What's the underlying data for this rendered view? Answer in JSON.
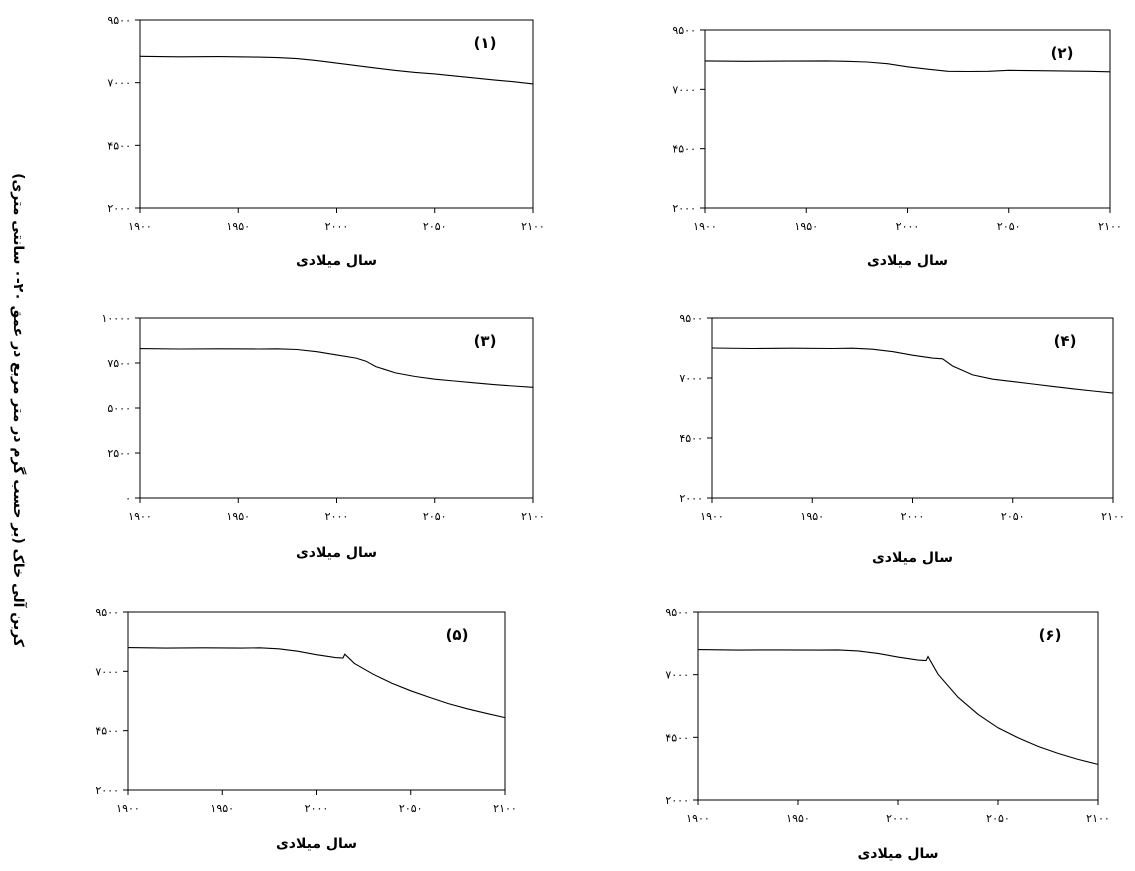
{
  "figure": {
    "y_title": "کربن آلی خاک (بر حسب گرم در متر مربع در عمق ۲۰-۰ سانتی متری)"
  },
  "chart_data": [
    {
      "type": "line",
      "panel_label": "(۱)",
      "xlabel": "سال میلادی",
      "xlim": [
        1900,
        2100
      ],
      "ylim": [
        2000,
        9500
      ],
      "xticks": [
        1900,
        1950,
        2000,
        2050,
        2100
      ],
      "yticks": [
        2000,
        4500,
        7000,
        9500
      ],
      "xtick_labels": [
        "۱۹۰۰",
        "۱۹۵۰",
        "۲۰۰۰",
        "۲۰۵۰",
        "۲۱۰۰"
      ],
      "ytick_labels": [
        "۲۰۰۰",
        "۴۵۰۰",
        "۷۰۰۰",
        "۹۵۰۰"
      ],
      "grid": false,
      "series": [
        {
          "x": [
            1900,
            1920,
            1940,
            1960,
            1970,
            1980,
            1990,
            2000,
            2010,
            2020,
            2030,
            2040,
            2050,
            2060,
            2070,
            2080,
            2090,
            2100
          ],
          "values": [
            8050,
            8030,
            8040,
            8020,
            8000,
            7960,
            7880,
            7780,
            7680,
            7580,
            7490,
            7410,
            7350,
            7270,
            7190,
            7110,
            7040,
            6950
          ]
        }
      ]
    },
    {
      "type": "line",
      "panel_label": "(۲)",
      "xlabel": "سال میلادی",
      "xlim": [
        1900,
        2100
      ],
      "ylim": [
        2000,
        9500
      ],
      "xticks": [
        1900,
        1950,
        2000,
        2050,
        2100
      ],
      "yticks": [
        2000,
        4500,
        7000,
        9500
      ],
      "xtick_labels": [
        "۱۹۰۰",
        "۱۹۵۰",
        "۲۰۰۰",
        "۲۰۵۰",
        "۲۱۰۰"
      ],
      "ytick_labels": [
        "۲۰۰۰",
        "۴۵۰۰",
        "۷۰۰۰",
        "۹۵۰۰"
      ],
      "grid": false,
      "series": [
        {
          "x": [
            1900,
            1920,
            1940,
            1960,
            1970,
            1980,
            1990,
            2000,
            2010,
            2020,
            2030,
            2040,
            2050,
            2060,
            2070,
            2080,
            2090,
            2100
          ],
          "values": [
            8200,
            8180,
            8190,
            8200,
            8180,
            8150,
            8080,
            7950,
            7850,
            7760,
            7750,
            7760,
            7800,
            7790,
            7780,
            7770,
            7760,
            7740
          ]
        }
      ]
    },
    {
      "type": "line",
      "panel_label": "(۳)",
      "xlabel": "سال میلادی",
      "xlim": [
        1900,
        2100
      ],
      "ylim": [
        0,
        10000
      ],
      "xticks": [
        1900,
        1950,
        2000,
        2050,
        2100
      ],
      "yticks": [
        0,
        2500,
        5000,
        7500,
        10000
      ],
      "xtick_labels": [
        "۱۹۰۰",
        "۱۹۵۰",
        "۲۰۰۰",
        "۲۰۵۰",
        "۲۱۰۰"
      ],
      "ytick_labels": [
        "۰",
        "۲۵۰۰",
        "۵۰۰۰",
        "۷۵۰۰",
        "۱۰۰۰۰"
      ],
      "grid": false,
      "series": [
        {
          "x": [
            1900,
            1920,
            1940,
            1960,
            1970,
            1980,
            1990,
            2000,
            2010,
            2015,
            2020,
            2030,
            2040,
            2050,
            2060,
            2070,
            2080,
            2090,
            2100
          ],
          "values": [
            8300,
            8280,
            8290,
            8280,
            8290,
            8250,
            8130,
            7950,
            7770,
            7600,
            7300,
            6950,
            6750,
            6600,
            6500,
            6400,
            6300,
            6220,
            6150
          ]
        }
      ]
    },
    {
      "type": "line",
      "panel_label": "(۴)",
      "xlabel": "سال میلادی",
      "xlim": [
        1900,
        2100
      ],
      "ylim": [
        2000,
        9500
      ],
      "xticks": [
        1900,
        1950,
        2000,
        2050,
        2100
      ],
      "yticks": [
        2000,
        4500,
        7000,
        9500
      ],
      "xtick_labels": [
        "۱۹۰۰",
        "۱۹۵۰",
        "۲۰۰۰",
        "۲۰۵۰",
        "۲۱۰۰"
      ],
      "ytick_labels": [
        "۲۰۰۰",
        "۴۵۰۰",
        "۷۰۰۰",
        "۹۵۰۰"
      ],
      "grid": false,
      "series": [
        {
          "x": [
            1900,
            1920,
            1940,
            1960,
            1970,
            1980,
            1990,
            2000,
            2010,
            2015,
            2020,
            2030,
            2040,
            2050,
            2060,
            2070,
            2080,
            2090,
            2100
          ],
          "values": [
            8250,
            8230,
            8240,
            8230,
            8240,
            8200,
            8100,
            7950,
            7830,
            7800,
            7500,
            7130,
            6950,
            6850,
            6750,
            6650,
            6550,
            6460,
            6370
          ]
        }
      ]
    },
    {
      "type": "line",
      "panel_label": "(۵)",
      "xlabel": "سال میلادی",
      "xlim": [
        1900,
        2100
      ],
      "ylim": [
        2000,
        9500
      ],
      "xticks": [
        1900,
        1950,
        2000,
        2050,
        2100
      ],
      "yticks": [
        2000,
        4500,
        7000,
        9500
      ],
      "xtick_labels": [
        "۱۹۰۰",
        "۱۹۵۰",
        "۲۰۰۰",
        "۲۰۵۰",
        "۲۱۰۰"
      ],
      "ytick_labels": [
        "۲۰۰۰",
        "۴۵۰۰",
        "۷۰۰۰",
        "۹۵۰۰"
      ],
      "grid": false,
      "series": [
        {
          "x": [
            1900,
            1920,
            1940,
            1960,
            1970,
            1980,
            1990,
            2000,
            2010,
            2014,
            2015,
            2020,
            2030,
            2040,
            2050,
            2060,
            2070,
            2080,
            2090,
            2100
          ],
          "values": [
            8000,
            7980,
            7990,
            7980,
            7990,
            7950,
            7850,
            7700,
            7580,
            7560,
            7720,
            7340,
            6880,
            6500,
            6180,
            5900,
            5640,
            5420,
            5230,
            5050
          ]
        }
      ]
    },
    {
      "type": "line",
      "panel_label": "(۶)",
      "xlabel": "سال میلادی",
      "xlim": [
        1900,
        2100
      ],
      "ylim": [
        2000,
        9500
      ],
      "xticks": [
        1900,
        1950,
        2000,
        2050,
        2100
      ],
      "yticks": [
        2000,
        4500,
        7000,
        9500
      ],
      "xtick_labels": [
        "۱۹۰۰",
        "۱۹۵۰",
        "۲۰۰۰",
        "۲۰۵۰",
        "۲۱۰۰"
      ],
      "ytick_labels": [
        "۲۰۰۰",
        "۴۵۰۰",
        "۷۰۰۰",
        "۹۵۰۰"
      ],
      "grid": false,
      "series": [
        {
          "x": [
            1900,
            1920,
            1940,
            1960,
            1970,
            1980,
            1990,
            2000,
            2010,
            2014,
            2015,
            2020,
            2030,
            2040,
            2050,
            2060,
            2070,
            2080,
            2090,
            2100
          ],
          "values": [
            8000,
            7980,
            7990,
            7980,
            7990,
            7950,
            7850,
            7700,
            7580,
            7560,
            7720,
            7020,
            6100,
            5420,
            4880,
            4480,
            4140,
            3860,
            3620,
            3420
          ]
        }
      ]
    }
  ]
}
